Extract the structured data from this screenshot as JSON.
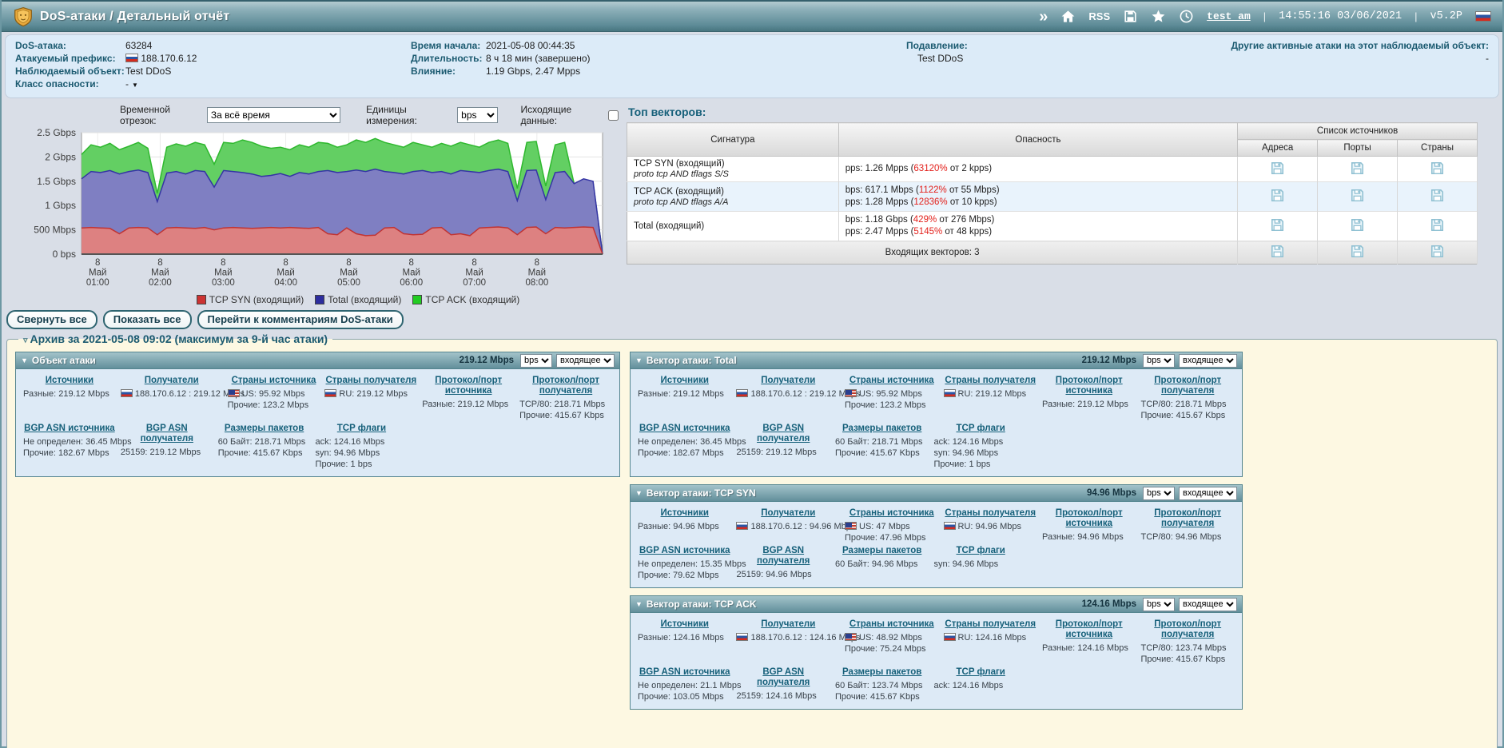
{
  "header": {
    "title": "DoS-атаки / Детальный отчёт",
    "chevrons": "»",
    "rss": "RSS",
    "user": "test_am",
    "sep": "|",
    "datetime": "14:55:16 03/06/2021",
    "version": "v5.2P"
  },
  "info": {
    "attack_id_label": "DoS-атака:",
    "attack_id": "63284",
    "prefix_label": "Атакуемый префикс:",
    "prefix": "188.170.6.12",
    "object_label": "Наблюдаемый объект:",
    "object": "Test DDoS",
    "class_label": "Класс опасности:",
    "class_value": "-",
    "start_label": "Время начала:",
    "start": "2021-05-08 00:44:35",
    "duration_label": "Длительность:",
    "duration": "8 ч 18 мин (завершено)",
    "impact_label": "Влияние:",
    "impact": "1.19 Gbps, 2.47 Mpps",
    "mitigation_label": "Подавление:",
    "mitigation": "Test DDoS",
    "other_label": "Другие активные атаки на этот наблюдаемый объект:",
    "other": "-"
  },
  "controls": {
    "timerange_label": "Временной отрезок:",
    "timerange_value": "За всё время",
    "units_label": "Единицы измерения:",
    "units_value": "bps",
    "outgoing_label": "Исходящие данные:"
  },
  "chart_data": {
    "type": "area",
    "ylim": [
      0,
      2.5
    ],
    "grid": true,
    "legend_position": "bottom",
    "yticks": [
      {
        "v": 2.5,
        "label": "2.5 Gbps"
      },
      {
        "v": 2.0,
        "label": "2 Gbps"
      },
      {
        "v": 1.5,
        "label": "1.5 Gbps"
      },
      {
        "v": 1.0,
        "label": "1 Gbps"
      },
      {
        "v": 0.5,
        "label": "500 Mbps"
      },
      {
        "v": 0,
        "label": "0 bps"
      }
    ],
    "xticks": [
      {
        "pos": 0.031,
        "label": [
          "8",
          "Май",
          "01:00"
        ]
      },
      {
        "pos": 0.151,
        "label": [
          "8",
          "Май",
          "02:00"
        ]
      },
      {
        "pos": 0.272,
        "label": [
          "8",
          "Май",
          "03:00"
        ]
      },
      {
        "pos": 0.392,
        "label": [
          "8",
          "Май",
          "04:00"
        ]
      },
      {
        "pos": 0.513,
        "label": [
          "8",
          "Май",
          "05:00"
        ]
      },
      {
        "pos": 0.633,
        "label": [
          "8",
          "Май",
          "06:00"
        ]
      },
      {
        "pos": 0.754,
        "label": [
          "8",
          "Май",
          "07:00"
        ]
      },
      {
        "pos": 0.874,
        "label": [
          "8",
          "Май",
          "08:00"
        ]
      }
    ],
    "series": [
      {
        "name": "TCP ACK (входящий)",
        "unit": "Gbps",
        "stroke": "#2eb82e",
        "fill": "#63cf63",
        "values": [
          2.05,
          2.25,
          2.2,
          2.28,
          2.15,
          2.22,
          2.3,
          2.18,
          1.25,
          2.2,
          2.27,
          2.22,
          2.3,
          2.25,
          1.85,
          2.3,
          2.28,
          2.35,
          2.3,
          2.22,
          2.18,
          2.2,
          2.15,
          2.25,
          2.2,
          2.3,
          2.28,
          2.2,
          2.25,
          2.35,
          2.3,
          2.38,
          2.3,
          2.25,
          2.2,
          2.3,
          2.25,
          2.2,
          2.28,
          2.22,
          2.3,
          2.25,
          2.2,
          2.3,
          2.35,
          2.28,
          1.35,
          2.3,
          2.32,
          1.4,
          2.25,
          2.3,
          1.45,
          1.5,
          1.48,
          0
        ]
      },
      {
        "name": "Total (входящий)",
        "unit": "Gbps",
        "stroke": "#3434a4",
        "fill": "#7f7fc2",
        "values": [
          1.55,
          1.7,
          1.68,
          1.72,
          1.65,
          1.7,
          1.73,
          1.68,
          1.08,
          1.67,
          1.7,
          1.65,
          1.72,
          1.7,
          1.38,
          1.72,
          1.7,
          1.68,
          1.65,
          1.6,
          1.62,
          1.66,
          1.6,
          1.68,
          1.65,
          1.7,
          1.72,
          1.68,
          1.7,
          1.73,
          1.7,
          1.75,
          1.7,
          1.68,
          1.65,
          1.7,
          1.72,
          1.68,
          1.7,
          1.65,
          1.72,
          1.7,
          1.68,
          1.72,
          1.75,
          1.7,
          1.1,
          1.72,
          1.73,
          1.12,
          1.68,
          1.7,
          1.45,
          1.55,
          1.5,
          0
        ]
      },
      {
        "name": "TCP SYN (входящий)",
        "unit": "Gbps",
        "stroke": "#c03434",
        "fill": "#dd8181",
        "values": [
          0.54,
          0.55,
          0.54,
          0.53,
          0.42,
          0.54,
          0.55,
          0.54,
          0.4,
          0.54,
          0.55,
          0.54,
          0.53,
          0.55,
          0.5,
          0.54,
          0.55,
          0.54,
          0.53,
          0.54,
          0.55,
          0.54,
          0.55,
          0.54,
          0.53,
          0.55,
          0.42,
          0.4,
          0.54,
          0.42,
          0.38,
          0.39,
          0.54,
          0.55,
          0.42,
          0.4,
          0.41,
          0.54,
          0.55,
          0.4,
          0.42,
          0.38,
          0.54,
          0.55,
          0.56,
          0.54,
          0.4,
          0.55,
          0.56,
          0.42,
          0.55,
          0.54,
          0.55,
          0.56,
          0.55,
          0
        ]
      }
    ],
    "legend": [
      {
        "label": "TCP SYN (входящий)",
        "color": "#cc3333"
      },
      {
        "label": "Total (входящий)",
        "color": "#2d2d9e"
      },
      {
        "label": "TCP ACK (входящий)",
        "color": "#22cc22"
      }
    ]
  },
  "top_vectors": {
    "title": "Топ векторов:",
    "col_signature": "Сигнатура",
    "col_danger": "Опасность",
    "col_sources": "Список источников",
    "col_addresses": "Адреса",
    "col_ports": "Порты",
    "col_countries": "Страны",
    "rows": [
      {
        "signature": "TCP SYN (входящий)",
        "filter": "proto tcp AND tflags S/S",
        "danger": [
          {
            "pre": "pps: 1.26 Mpps (",
            "pct": "63120%",
            "post": " от 2 kpps)"
          }
        ]
      },
      {
        "signature": "TCP ACK (входящий)",
        "filter": "proto tcp AND tflags A/A",
        "danger": [
          {
            "pre": "bps: 617.1 Mbps (",
            "pct": "1122%",
            "post": " от 55 Mbps)"
          },
          {
            "pre": "pps: 1.28 Mpps (",
            "pct": "12836%",
            "post": " от 10 kpps)"
          }
        ]
      },
      {
        "signature": "Total (входящий)",
        "filter": null,
        "danger": [
          {
            "pre": "bps: 1.18 Gbps (",
            "pct": "429%",
            "post": " от 276 Mbps)"
          },
          {
            "pre": "pps: 2.47 Mpps (",
            "pct": "5145%",
            "post": " от 48 kpps)"
          }
        ]
      }
    ],
    "footer": "Входящих векторов: 3"
  },
  "toolbar": {
    "collapse_all": "Свернуть все",
    "show_all": "Показать все",
    "goto_comments": "Перейти к комментариям DoS-атаки"
  },
  "archive": {
    "legend": "Архив за 2021-05-08 09:02 (максимум за 9-й час атаки)",
    "panels": [
      {
        "column": "left",
        "title": "Объект атаки",
        "rate": "219.12 Mbps",
        "unit": "bps",
        "direction": "входящее",
        "rows": [
          [
            {
              "h": "Источники",
              "lines": [
                {
                  "t": "Разные:",
                  "v": "219.12 Mbps"
                }
              ]
            },
            {
              "h": "Получатели",
              "lines": [
                {
                  "f": "ru",
                  "t": "188.170.6.12 :",
                  "v": "219.12 Mbps"
                }
              ]
            },
            {
              "h": "Страны источника",
              "lines": [
                {
                  "f": "us",
                  "t": "US:",
                  "v": "95.92 Mbps"
                },
                {
                  "t": "Прочие:",
                  "v": "123.2 Mbps"
                }
              ]
            },
            {
              "h": "Страны получателя",
              "lines": [
                {
                  "f": "ru",
                  "t": "RU:",
                  "v": "219.12 Mbps"
                }
              ]
            },
            {
              "h": "Протокол/порт источника",
              "lines": [
                {
                  "t": "Разные:",
                  "v": "219.12 Mbps"
                }
              ]
            },
            {
              "h": "Протокол/порт получателя",
              "lines": [
                {
                  "t": "TCP/80:",
                  "v": "218.71 Mbps"
                },
                {
                  "t": "Прочие:",
                  "v": "415.67 Kbps"
                }
              ]
            }
          ],
          [
            {
              "h": "BGP ASN источника",
              "lines": [
                {
                  "t": "Не определен:",
                  "v": "36.45 Mbps"
                },
                {
                  "t": "Прочие:",
                  "v": "182.67 Mbps"
                }
              ]
            },
            {
              "h": "BGP ASN получателя",
              "lines": [
                {
                  "t": "25159:",
                  "v": "219.12 Mbps"
                }
              ]
            },
            {
              "h": "Размеры пакетов",
              "lines": [
                {
                  "t": "60 Байт:",
                  "v": "218.71 Mbps"
                },
                {
                  "t": "Прочие:",
                  "v": "415.67 Kbps"
                }
              ]
            },
            {
              "h": "TCP флаги",
              "lines": [
                {
                  "t": "ack:",
                  "v": "124.16 Mbps"
                },
                {
                  "t": "syn:",
                  "v": "94.96 Mbps"
                },
                {
                  "t": "Прочие:",
                  "v": "1 bps"
                }
              ]
            }
          ]
        ]
      },
      {
        "column": "right",
        "title": "Вектор атаки: Total",
        "rate": "219.12 Mbps",
        "unit": "bps",
        "direction": "входящее",
        "rows": [
          [
            {
              "h": "Источники",
              "lines": [
                {
                  "t": "Разные:",
                  "v": "219.12 Mbps"
                }
              ]
            },
            {
              "h": "Получатели",
              "lines": [
                {
                  "f": "ru",
                  "t": "188.170.6.12 :",
                  "v": "219.12 Mbps"
                }
              ]
            },
            {
              "h": "Страны источника",
              "lines": [
                {
                  "f": "us",
                  "t": "US:",
                  "v": "95.92 Mbps"
                },
                {
                  "t": "Прочие:",
                  "v": "123.2 Mbps"
                }
              ]
            },
            {
              "h": "Страны получателя",
              "lines": [
                {
                  "f": "ru",
                  "t": "RU:",
                  "v": "219.12 Mbps"
                }
              ]
            },
            {
              "h": "Протокол/порт источника",
              "lines": [
                {
                  "t": "Разные:",
                  "v": "219.12 Mbps"
                }
              ]
            },
            {
              "h": "Протокол/порт получателя",
              "lines": [
                {
                  "t": "TCP/80:",
                  "v": "218.71 Mbps"
                },
                {
                  "t": "Прочие:",
                  "v": "415.67 Kbps"
                }
              ]
            }
          ],
          [
            {
              "h": "BGP ASN источника",
              "lines": [
                {
                  "t": "Не определен:",
                  "v": "36.45 Mbps"
                },
                {
                  "t": "Прочие:",
                  "v": "182.67 Mbps"
                }
              ]
            },
            {
              "h": "BGP ASN получателя",
              "lines": [
                {
                  "t": "25159:",
                  "v": "219.12 Mbps"
                }
              ]
            },
            {
              "h": "Размеры пакетов",
              "lines": [
                {
                  "t": "60 Байт:",
                  "v": "218.71 Mbps"
                },
                {
                  "t": "Прочие:",
                  "v": "415.67 Kbps"
                }
              ]
            },
            {
              "h": "TCP флаги",
              "lines": [
                {
                  "t": "ack:",
                  "v": "124.16 Mbps"
                },
                {
                  "t": "syn:",
                  "v": "94.96 Mbps"
                },
                {
                  "t": "Прочие:",
                  "v": "1 bps"
                }
              ]
            }
          ]
        ]
      },
      {
        "column": "right",
        "title": "Вектор атаки: TCP SYN",
        "rate": "94.96 Mbps",
        "unit": "bps",
        "direction": "входящее",
        "rows": [
          [
            {
              "h": "Источники",
              "lines": [
                {
                  "t": "Разные:",
                  "v": "94.96 Mbps"
                }
              ]
            },
            {
              "h": "Получатели",
              "lines": [
                {
                  "f": "ru",
                  "t": "188.170.6.12 :",
                  "v": "94.96 Mbps"
                }
              ]
            },
            {
              "h": "Страны источника",
              "lines": [
                {
                  "f": "us",
                  "t": "US:",
                  "v": "47 Mbps"
                },
                {
                  "t": "Прочие:",
                  "v": "47.96 Mbps"
                }
              ]
            },
            {
              "h": "Страны получателя",
              "lines": [
                {
                  "f": "ru",
                  "t": "RU:",
                  "v": "94.96 Mbps"
                }
              ]
            },
            {
              "h": "Протокол/порт источника",
              "lines": [
                {
                  "t": "Разные:",
                  "v": "94.96 Mbps"
                }
              ]
            },
            {
              "h": "Протокол/порт получателя",
              "lines": [
                {
                  "t": "TCP/80:",
                  "v": "94.96 Mbps"
                }
              ]
            }
          ],
          [
            {
              "h": "BGP ASN источника",
              "lines": [
                {
                  "t": "Не определен:",
                  "v": "15.35 Mbps"
                },
                {
                  "t": "Прочие:",
                  "v": "79.62 Mbps"
                }
              ]
            },
            {
              "h": "BGP ASN получателя",
              "lines": [
                {
                  "t": "25159:",
                  "v": "94.96 Mbps"
                }
              ]
            },
            {
              "h": "Размеры пакетов",
              "lines": [
                {
                  "t": "60 Байт:",
                  "v": "94.96 Mbps"
                }
              ]
            },
            {
              "h": "TCP флаги",
              "lines": [
                {
                  "t": "syn:",
                  "v": "94.96 Mbps"
                }
              ]
            }
          ]
        ]
      },
      {
        "column": "right",
        "title": "Вектор атаки: TCP ACK",
        "rate": "124.16 Mbps",
        "unit": "bps",
        "direction": "входящее",
        "rows": [
          [
            {
              "h": "Источники",
              "lines": [
                {
                  "t": "Разные:",
                  "v": "124.16 Mbps"
                }
              ]
            },
            {
              "h": "Получатели",
              "lines": [
                {
                  "f": "ru",
                  "t": "188.170.6.12 :",
                  "v": "124.16 Mbps"
                }
              ]
            },
            {
              "h": "Страны источника",
              "lines": [
                {
                  "f": "us",
                  "t": "US:",
                  "v": "48.92 Mbps"
                },
                {
                  "t": "Прочие:",
                  "v": "75.24 Mbps"
                }
              ]
            },
            {
              "h": "Страны получателя",
              "lines": [
                {
                  "f": "ru",
                  "t": "RU:",
                  "v": "124.16 Mbps"
                }
              ]
            },
            {
              "h": "Протокол/порт источника",
              "lines": [
                {
                  "t": "Разные:",
                  "v": "124.16 Mbps"
                }
              ]
            },
            {
              "h": "Протокол/порт получателя",
              "lines": [
                {
                  "t": "TCP/80:",
                  "v": "123.74 Mbps"
                },
                {
                  "t": "Прочие:",
                  "v": "415.67 Kbps"
                }
              ]
            }
          ],
          [
            {
              "h": "BGP ASN источника",
              "lines": [
                {
                  "t": "Не определен:",
                  "v": "21.1 Mbps"
                },
                {
                  "t": "Прочие:",
                  "v": "103.05 Mbps"
                }
              ]
            },
            {
              "h": "BGP ASN получателя",
              "lines": [
                {
                  "t": "25159:",
                  "v": "124.16 Mbps"
                }
              ]
            },
            {
              "h": "Размеры пакетов",
              "lines": [
                {
                  "t": "60 Байт:",
                  "v": "123.74 Mbps"
                },
                {
                  "t": "Прочие:",
                  "v": "415.67 Kbps"
                }
              ]
            },
            {
              "h": "TCP флаги",
              "lines": [
                {
                  "t": "ack:",
                  "v": "124.16 Mbps"
                }
              ]
            }
          ]
        ]
      }
    ]
  }
}
